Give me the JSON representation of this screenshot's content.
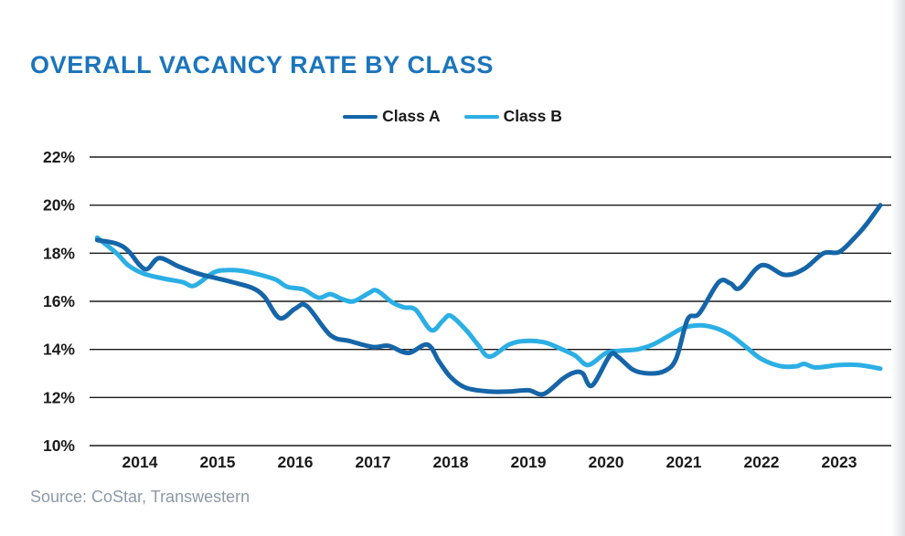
{
  "title": "OVERALL VACANCY RATE BY CLASS",
  "source": "Source: CoStar, Transwestern",
  "legend": [
    {
      "label": "Class A",
      "color": "#1565A8"
    },
    {
      "label": "Class B",
      "color": "#2BAFE4"
    }
  ],
  "colors": {
    "title": "#1B75BC",
    "gridline": "#1A1A1A",
    "tick_text": "#1A1A1A",
    "source_text": "#8D99A6",
    "class_a": "#1565A8",
    "class_b": "#2BAFE4"
  },
  "chart_data": {
    "type": "line",
    "title": "OVERALL VACANCY RATE BY CLASS",
    "xlabel": "",
    "ylabel": "",
    "grid": true,
    "legend_position": "top-center",
    "ylim": [
      10,
      22
    ],
    "xlim": [
      2013.3,
      2023.75
    ],
    "y_ticks": [
      {
        "label": "22%",
        "value": 22
      },
      {
        "label": "20%",
        "value": 20
      },
      {
        "label": "18%",
        "value": 18
      },
      {
        "label": "16%",
        "value": 16
      },
      {
        "label": "14%",
        "value": 14
      },
      {
        "label": "12%",
        "value": 12
      },
      {
        "label": "10%",
        "value": 10
      }
    ],
    "x_ticks": [
      {
        "label": "2014",
        "value": 2014
      },
      {
        "label": "2015",
        "value": 2015
      },
      {
        "label": "2016",
        "value": 2016
      },
      {
        "label": "2017",
        "value": 2017
      },
      {
        "label": "2018",
        "value": 2018
      },
      {
        "label": "2019",
        "value": 2019
      },
      {
        "label": "2020",
        "value": 2020
      },
      {
        "label": "2021",
        "value": 2021
      },
      {
        "label": "2022",
        "value": 2022
      },
      {
        "label": "2023",
        "value": 2023
      }
    ],
    "series": [
      {
        "name": "Class A",
        "color": "#1565A8",
        "points": [
          [
            2013.45,
            18.55
          ],
          [
            2013.7,
            18.4
          ],
          [
            2013.85,
            18.1
          ],
          [
            2014.0,
            17.5
          ],
          [
            2014.1,
            17.35
          ],
          [
            2014.25,
            17.8
          ],
          [
            2014.5,
            17.45
          ],
          [
            2014.75,
            17.15
          ],
          [
            2015.0,
            16.95
          ],
          [
            2015.25,
            16.75
          ],
          [
            2015.45,
            16.55
          ],
          [
            2015.6,
            16.2
          ],
          [
            2015.8,
            15.3
          ],
          [
            2016.0,
            15.7
          ],
          [
            2016.15,
            15.8
          ],
          [
            2016.45,
            14.6
          ],
          [
            2016.7,
            14.35
          ],
          [
            2017.0,
            14.1
          ],
          [
            2017.2,
            14.15
          ],
          [
            2017.45,
            13.85
          ],
          [
            2017.7,
            14.2
          ],
          [
            2017.85,
            13.5
          ],
          [
            2018.0,
            12.85
          ],
          [
            2018.2,
            12.4
          ],
          [
            2018.5,
            12.25
          ],
          [
            2018.75,
            12.25
          ],
          [
            2019.0,
            12.3
          ],
          [
            2019.2,
            12.15
          ],
          [
            2019.45,
            12.8
          ],
          [
            2019.6,
            13.05
          ],
          [
            2019.7,
            13.0
          ],
          [
            2019.82,
            12.5
          ],
          [
            2020.05,
            13.75
          ],
          [
            2020.15,
            13.7
          ],
          [
            2020.35,
            13.15
          ],
          [
            2020.55,
            13.0
          ],
          [
            2020.75,
            13.1
          ],
          [
            2020.9,
            13.6
          ],
          [
            2021.05,
            15.25
          ],
          [
            2021.2,
            15.5
          ],
          [
            2021.45,
            16.8
          ],
          [
            2021.6,
            16.75
          ],
          [
            2021.72,
            16.55
          ],
          [
            2022.0,
            17.5
          ],
          [
            2022.3,
            17.1
          ],
          [
            2022.55,
            17.35
          ],
          [
            2022.8,
            18.0
          ],
          [
            2023.0,
            18.05
          ],
          [
            2023.2,
            18.65
          ],
          [
            2023.35,
            19.2
          ],
          [
            2023.53,
            20.0
          ]
        ]
      },
      {
        "name": "Class B",
        "color": "#2BAFE4",
        "points": [
          [
            2013.45,
            18.65
          ],
          [
            2013.7,
            18.0
          ],
          [
            2013.85,
            17.5
          ],
          [
            2014.05,
            17.15
          ],
          [
            2014.3,
            16.95
          ],
          [
            2014.55,
            16.8
          ],
          [
            2014.7,
            16.65
          ],
          [
            2014.95,
            17.2
          ],
          [
            2015.15,
            17.3
          ],
          [
            2015.35,
            17.25
          ],
          [
            2015.55,
            17.1
          ],
          [
            2015.75,
            16.9
          ],
          [
            2015.9,
            16.6
          ],
          [
            2016.1,
            16.5
          ],
          [
            2016.3,
            16.15
          ],
          [
            2016.45,
            16.3
          ],
          [
            2016.6,
            16.1
          ],
          [
            2016.75,
            16.0
          ],
          [
            2016.95,
            16.35
          ],
          [
            2017.05,
            16.45
          ],
          [
            2017.25,
            15.95
          ],
          [
            2017.4,
            15.75
          ],
          [
            2017.55,
            15.65
          ],
          [
            2017.75,
            14.8
          ],
          [
            2017.9,
            15.2
          ],
          [
            2018.0,
            15.4
          ],
          [
            2018.2,
            14.8
          ],
          [
            2018.35,
            14.2
          ],
          [
            2018.5,
            13.7
          ],
          [
            2018.75,
            14.2
          ],
          [
            2018.95,
            14.35
          ],
          [
            2019.2,
            14.3
          ],
          [
            2019.4,
            14.05
          ],
          [
            2019.6,
            13.75
          ],
          [
            2019.77,
            13.35
          ],
          [
            2020.0,
            13.85
          ],
          [
            2020.2,
            13.95
          ],
          [
            2020.4,
            14.0
          ],
          [
            2020.6,
            14.2
          ],
          [
            2020.8,
            14.55
          ],
          [
            2021.0,
            14.9
          ],
          [
            2021.2,
            15.0
          ],
          [
            2021.4,
            14.9
          ],
          [
            2021.6,
            14.6
          ],
          [
            2021.8,
            14.1
          ],
          [
            2022.0,
            13.6
          ],
          [
            2022.25,
            13.3
          ],
          [
            2022.45,
            13.3
          ],
          [
            2022.55,
            13.4
          ],
          [
            2022.7,
            13.25
          ],
          [
            2023.0,
            13.35
          ],
          [
            2023.25,
            13.35
          ],
          [
            2023.53,
            13.2
          ]
        ]
      }
    ]
  }
}
